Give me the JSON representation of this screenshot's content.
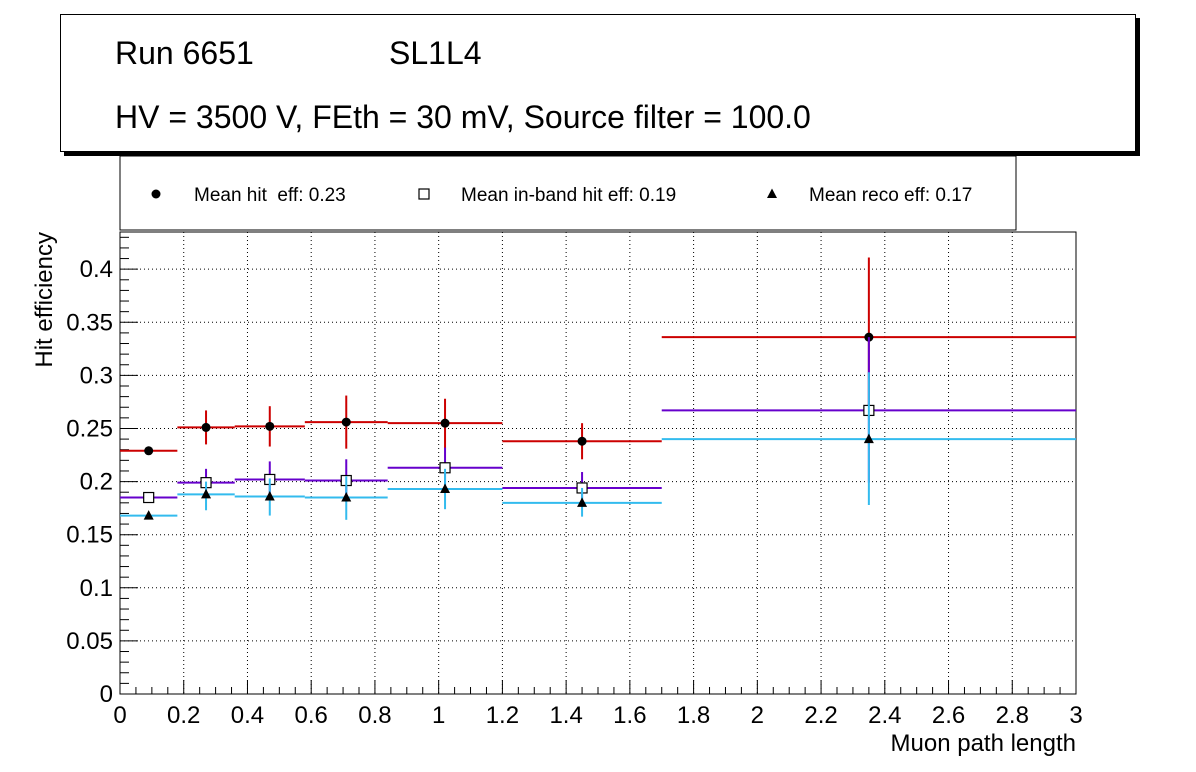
{
  "header": {
    "run": "Run 6651",
    "layer": "SL1L4",
    "params": "HV = 3500 V, FEth = 30 mV, Source filter = 100.0"
  },
  "chart_data": {
    "type": "scatter",
    "title": "",
    "xlabel": "Muon path length",
    "ylabel": "Hit efficiency",
    "xlim": [
      0,
      3
    ],
    "ylim": [
      0,
      0.435
    ],
    "grid": true,
    "legend_position": "top",
    "x_ticks": [
      "0",
      "0.2",
      "0.4",
      "0.6",
      "0.8",
      "1",
      "1.2",
      "1.4",
      "1.6",
      "1.8",
      "2",
      "2.2",
      "2.4",
      "2.6",
      "2.8",
      "3"
    ],
    "y_ticks": [
      "0",
      "0.05",
      "0.1",
      "0.15",
      "0.2",
      "0.25",
      "0.3",
      "0.35",
      "0.4"
    ],
    "series": [
      {
        "name": "Mean hit  eff: 0.23",
        "marker": "circle",
        "color": "#cc0000",
        "points": [
          {
            "x": 0.09,
            "y": 0.229,
            "xlow": 0.0,
            "xhigh": 0.18,
            "ylow": 0.229,
            "yhigh": 0.229
          },
          {
            "x": 0.27,
            "y": 0.251,
            "xlow": 0.18,
            "xhigh": 0.36,
            "ylow": 0.235,
            "yhigh": 0.267
          },
          {
            "x": 0.47,
            "y": 0.252,
            "xlow": 0.36,
            "xhigh": 0.58,
            "ylow": 0.233,
            "yhigh": 0.271
          },
          {
            "x": 0.71,
            "y": 0.256,
            "xlow": 0.58,
            "xhigh": 0.84,
            "ylow": 0.231,
            "yhigh": 0.281
          },
          {
            "x": 1.02,
            "y": 0.255,
            "xlow": 0.84,
            "xhigh": 1.2,
            "ylow": 0.231,
            "yhigh": 0.278
          },
          {
            "x": 1.45,
            "y": 0.238,
            "xlow": 1.2,
            "xhigh": 1.7,
            "ylow": 0.221,
            "yhigh": 0.255
          },
          {
            "x": 2.35,
            "y": 0.336,
            "xlow": 1.7,
            "xhigh": 3.0,
            "ylow": 0.262,
            "yhigh": 0.411
          }
        ]
      },
      {
        "name": "Mean in-band hit eff: 0.19",
        "marker": "open-square",
        "color": "#6600cc",
        "points": [
          {
            "x": 0.09,
            "y": 0.185,
            "xlow": 0.0,
            "xhigh": 0.18,
            "ylow": 0.185,
            "yhigh": 0.185
          },
          {
            "x": 0.27,
            "y": 0.199,
            "xlow": 0.18,
            "xhigh": 0.36,
            "ylow": 0.186,
            "yhigh": 0.212
          },
          {
            "x": 0.47,
            "y": 0.202,
            "xlow": 0.36,
            "xhigh": 0.58,
            "ylow": 0.186,
            "yhigh": 0.219
          },
          {
            "x": 0.71,
            "y": 0.201,
            "xlow": 0.58,
            "xhigh": 0.84,
            "ylow": 0.181,
            "yhigh": 0.221
          },
          {
            "x": 1.02,
            "y": 0.213,
            "xlow": 0.84,
            "xhigh": 1.2,
            "ylow": 0.196,
            "yhigh": 0.232
          },
          {
            "x": 1.45,
            "y": 0.194,
            "xlow": 1.2,
            "xhigh": 1.7,
            "ylow": 0.181,
            "yhigh": 0.209
          },
          {
            "x": 2.35,
            "y": 0.267,
            "xlow": 1.7,
            "xhigh": 3.0,
            "ylow": 0.199,
            "yhigh": 0.336
          }
        ]
      },
      {
        "name": "Mean reco eff: 0.17",
        "marker": "triangle",
        "color": "#33bbee",
        "points": [
          {
            "x": 0.09,
            "y": 0.168,
            "xlow": 0.0,
            "xhigh": 0.18,
            "ylow": 0.168,
            "yhigh": 0.168
          },
          {
            "x": 0.27,
            "y": 0.188,
            "xlow": 0.18,
            "xhigh": 0.36,
            "ylow": 0.173,
            "yhigh": 0.2
          },
          {
            "x": 0.47,
            "y": 0.186,
            "xlow": 0.36,
            "xhigh": 0.58,
            "ylow": 0.168,
            "yhigh": 0.203
          },
          {
            "x": 0.71,
            "y": 0.185,
            "xlow": 0.58,
            "xhigh": 0.84,
            "ylow": 0.164,
            "yhigh": 0.205
          },
          {
            "x": 1.02,
            "y": 0.193,
            "xlow": 0.84,
            "xhigh": 1.2,
            "ylow": 0.174,
            "yhigh": 0.212
          },
          {
            "x": 1.45,
            "y": 0.18,
            "xlow": 1.2,
            "xhigh": 1.7,
            "ylow": 0.167,
            "yhigh": 0.194
          },
          {
            "x": 2.35,
            "y": 0.24,
            "xlow": 1.7,
            "xhigh": 3.0,
            "ylow": 0.178,
            "yhigh": 0.303
          }
        ]
      }
    ]
  }
}
